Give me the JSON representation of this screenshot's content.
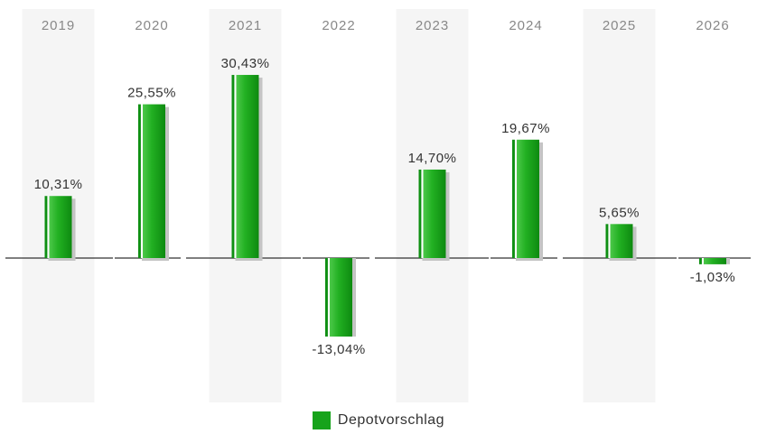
{
  "chart_data": {
    "type": "bar",
    "categories": [
      "2019",
      "2020",
      "2021",
      "2022",
      "2023",
      "2024",
      "2025",
      "2026"
    ],
    "series": [
      {
        "name": "Depotvorschlag",
        "values": [
          10.31,
          25.55,
          30.43,
          -13.04,
          14.7,
          19.67,
          5.65,
          -1.03
        ],
        "labels": [
          "10,31%",
          "25,55%",
          "30,43%",
          "-13,04%",
          "14,70%",
          "19,67%",
          "5,65%",
          "-1,03%"
        ]
      }
    ],
    "grid": false,
    "legend_position": "bottom-center"
  },
  "colors": {
    "bar": "#17a31b",
    "bar_highlight": "#5fd35c",
    "bar_shadow": "#c4c4c4",
    "band": "#f5f5f5",
    "baseline": "#333333"
  }
}
